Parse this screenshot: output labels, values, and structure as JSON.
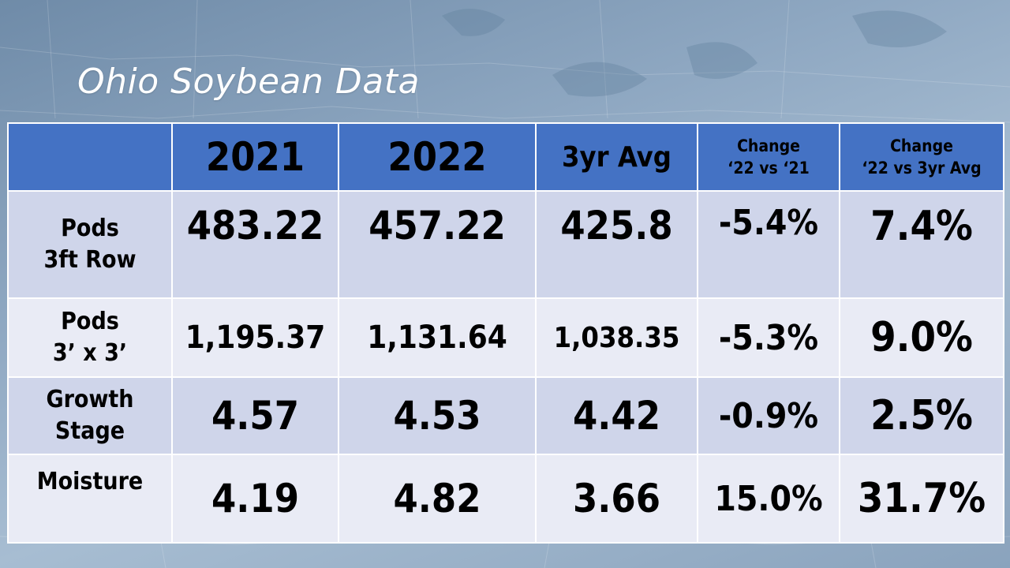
{
  "title": "Ohio Soybean Data",
  "colors": {
    "header_blue": "#4472c4",
    "row_dark": "#cfd5ea",
    "row_light": "#e9ebf5"
  },
  "table": {
    "headers": {
      "col1": "2021",
      "col2": "2022",
      "col3": "3yr Avg",
      "col4_line1": "Change",
      "col4_line2": "‘22 vs ‘21",
      "col5_line1": "Change",
      "col5_line2": "‘22 vs 3yr Avg"
    },
    "rows": [
      {
        "label_line1": "Pods",
        "label_line2": "3ft Row",
        "v2021": "483.22",
        "v2022": "457.22",
        "avg3yr": "425.8",
        "chg_21": "-5.4%",
        "chg_avg": "7.4%"
      },
      {
        "label_line1": "Pods",
        "label_line2": "3’ x 3’",
        "v2021": "1,195.37",
        "v2022": "1,131.64",
        "avg3yr": "1,038.35",
        "chg_21": "-5.3%",
        "chg_avg": "9.0%"
      },
      {
        "label_line1": "Growth",
        "label_line2": "Stage",
        "v2021": "4.57",
        "v2022": "4.53",
        "avg3yr": "4.42",
        "chg_21": "-0.9%",
        "chg_avg": "2.5%"
      },
      {
        "label_line1": "Moisture",
        "v2021": "4.19",
        "v2022": "4.82",
        "avg3yr": "3.66",
        "chg_21": "15.0%",
        "chg_avg": "31.7%"
      }
    ]
  }
}
